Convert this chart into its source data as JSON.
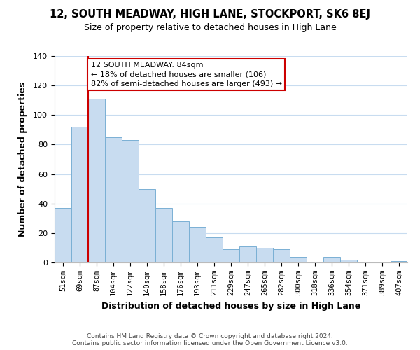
{
  "title": "12, SOUTH MEADWAY, HIGH LANE, STOCKPORT, SK6 8EJ",
  "subtitle": "Size of property relative to detached houses in High Lane",
  "xlabel": "Distribution of detached houses by size in High Lane",
  "ylabel": "Number of detached properties",
  "bar_color": "#c8dcf0",
  "bar_edge_color": "#7ab0d4",
  "categories": [
    "51sqm",
    "69sqm",
    "87sqm",
    "104sqm",
    "122sqm",
    "140sqm",
    "158sqm",
    "176sqm",
    "193sqm",
    "211sqm",
    "229sqm",
    "247sqm",
    "265sqm",
    "282sqm",
    "300sqm",
    "318sqm",
    "336sqm",
    "354sqm",
    "371sqm",
    "389sqm",
    "407sqm"
  ],
  "values": [
    37,
    92,
    111,
    85,
    83,
    50,
    37,
    28,
    24,
    17,
    9,
    11,
    10,
    9,
    4,
    0,
    4,
    2,
    0,
    0,
    1
  ],
  "vline_x": 2.0,
  "vline_color": "#cc0000",
  "annotation_title": "12 SOUTH MEADWAY: 84sqm",
  "annotation_line1": "← 18% of detached houses are smaller (106)",
  "annotation_line2": "82% of semi-detached houses are larger (493) →",
  "annotation_box_color": "#ffffff",
  "annotation_box_edge": "#cc0000",
  "ylim": [
    0,
    140
  ],
  "yticks": [
    0,
    20,
    40,
    60,
    80,
    100,
    120,
    140
  ],
  "footer_line1": "Contains HM Land Registry data © Crown copyright and database right 2024.",
  "footer_line2": "Contains public sector information licensed under the Open Government Licence v3.0.",
  "background_color": "#ffffff",
  "grid_color": "#c8dcf0"
}
